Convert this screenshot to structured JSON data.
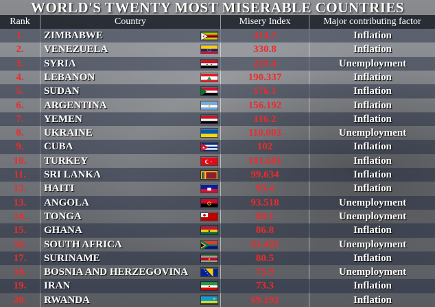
{
  "title": "WORLD'S TWENTY MOST MISERABLE COUNTRIES",
  "columns": {
    "rank": "Rank",
    "country": "Country",
    "index": "Misery Index",
    "factor": "Major contributing factor"
  },
  "rows": [
    {
      "rank": "1.",
      "country": "ZIMBABWE",
      "index": "414.7",
      "factor": "Inflation",
      "flag": "zimbabwe-flag-icon"
    },
    {
      "rank": "2.",
      "country": "VENEZUELA",
      "index": "330.8",
      "factor": "Inflation",
      "flag": "venezuela-flag-icon"
    },
    {
      "rank": "3.",
      "country": "SYRIA",
      "index": "225.4",
      "factor": "Unemployment",
      "flag": "syria-flag-icon"
    },
    {
      "rank": "4.",
      "country": "LEBANON",
      "index": "190.337",
      "factor": "Inflation",
      "flag": "lebanon-flag-icon"
    },
    {
      "rank": "5.",
      "country": "SUDAN",
      "index": "176.1",
      "factor": "Inflation",
      "flag": "sudan-flag-icon"
    },
    {
      "rank": "6.",
      "country": "ARGENTINA",
      "index": "156.192",
      "factor": "Inflation",
      "flag": "argentina-flag-icon"
    },
    {
      "rank": "7.",
      "country": "YEMEN",
      "index": "116.2",
      "factor": "Inflation",
      "flag": "yemen-flag-icon"
    },
    {
      "rank": "8.",
      "country": "UKRAINE",
      "index": "110.003",
      "factor": "Unemployment",
      "flag": "ukraine-flag-icon"
    },
    {
      "rank": "9.",
      "country": "CUBA",
      "index": "102",
      "factor": "Inflation",
      "flag": "cuba-flag-icon"
    },
    {
      "rank": "10.",
      "country": "TURKEY",
      "index": "101.601",
      "factor": "Inflation",
      "flag": "turkey-flag-icon"
    },
    {
      "rank": "11.",
      "country": "SRI LANKA",
      "index": "99.634",
      "factor": "Inflation",
      "flag": "sri-lanka-flag-icon"
    },
    {
      "rank": "12.",
      "country": "HAITI",
      "index": "95.4",
      "factor": "Inflation",
      "flag": "haiti-flag-icon"
    },
    {
      "rank": "13.",
      "country": "ANGOLA",
      "index": "93.518",
      "factor": "Unemployment",
      "flag": "angola-flag-icon"
    },
    {
      "rank": "14.",
      "country": "TONGA",
      "index": "88.1",
      "factor": "Unemployment",
      "flag": "tonga-flag-icon"
    },
    {
      "rank": "15.",
      "country": "GHANA",
      "index": "86.8",
      "factor": "Inflation",
      "flag": "ghana-flag-icon"
    },
    {
      "rank": "16.",
      "country": "SOUTH AFRICA",
      "index": "83.492",
      "factor": "Unemployment",
      "flag": "south-africa-flag-icon"
    },
    {
      "rank": "17.",
      "country": "SURINAME",
      "index": "80.5",
      "factor": "Inflation",
      "flag": "suriname-flag-icon"
    },
    {
      "rank": "18.",
      "country": "BOSNIA AND HERZEGOVINA",
      "index": "75.9",
      "factor": "Unemployment",
      "flag": "bosnia-flag-icon"
    },
    {
      "rank": "19.",
      "country": "IRAN",
      "index": "73.3",
      "factor": "Inflation",
      "flag": "iran-flag-icon"
    },
    {
      "rank": "20.",
      "country": "RWANDA",
      "index": "69.192",
      "factor": "Inflation",
      "flag": "rwanda-flag-icon"
    }
  ],
  "colors": {
    "rank": "#ee2b2b",
    "index": "#ee2b2b",
    "text": "#ffffff"
  }
}
